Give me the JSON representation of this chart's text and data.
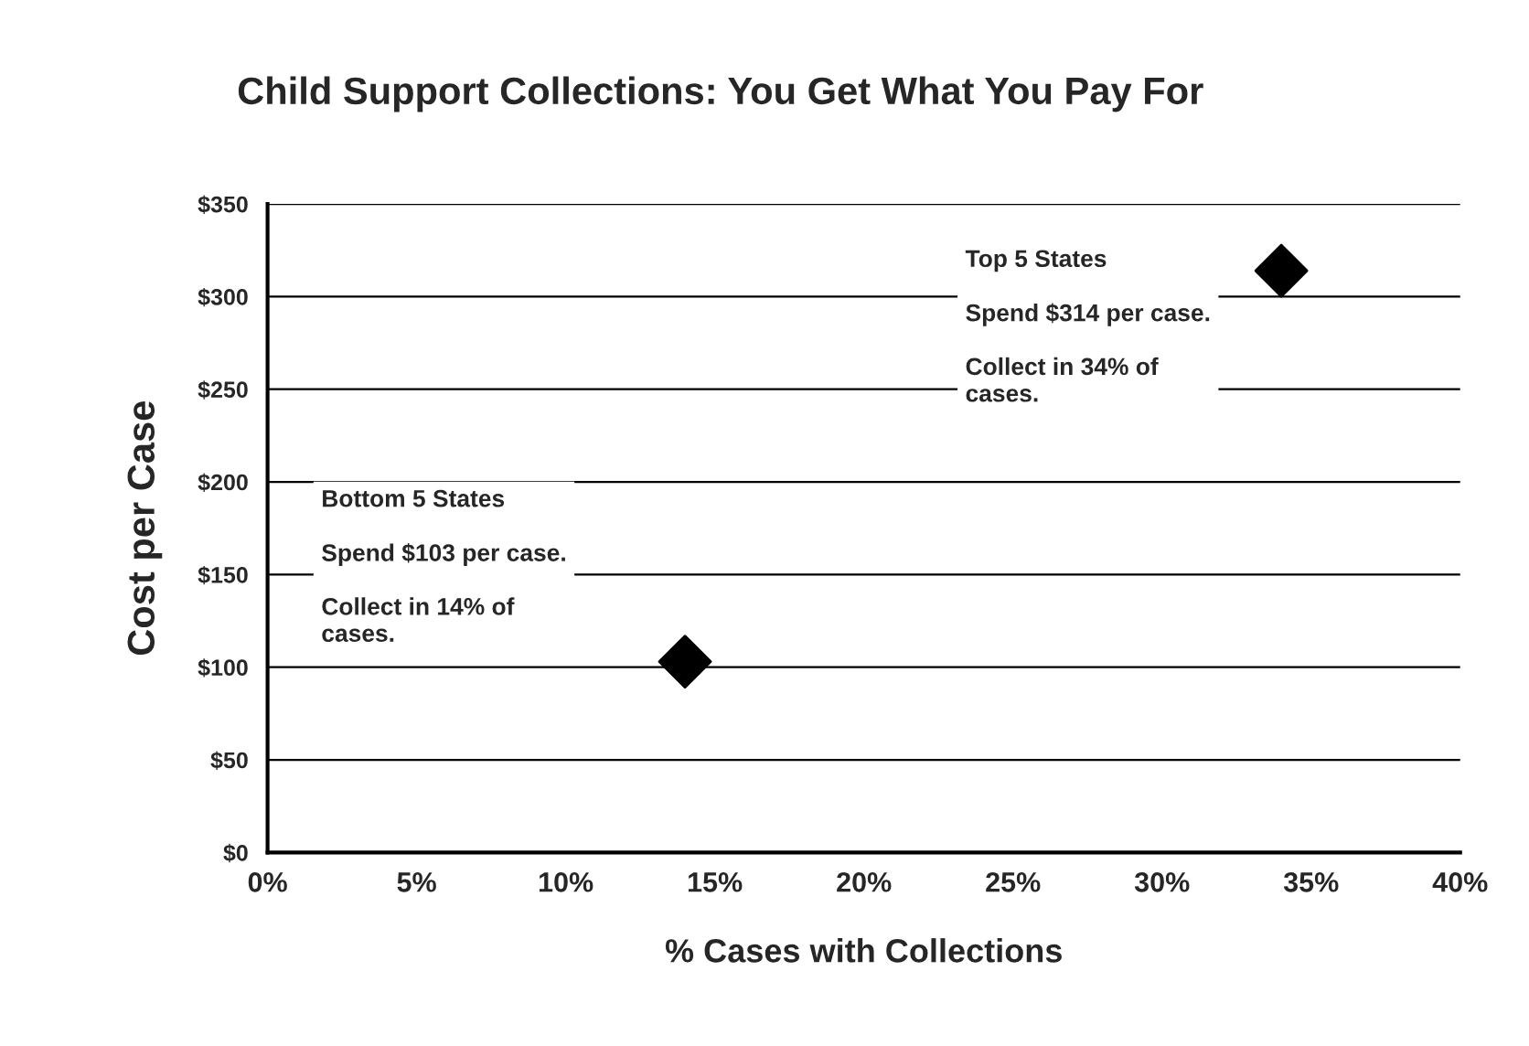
{
  "chart_data": {
    "type": "scatter",
    "title": "Child Support Collections: You Get What You Pay For",
    "xlabel": "% Cases with Collections",
    "ylabel": "Cost per Case",
    "x": [
      14,
      34
    ],
    "values": [
      103,
      314
    ],
    "color": "#000000",
    "marker": "diamond",
    "xlim": [
      0,
      40
    ],
    "xticks": [
      {
        "value": 0,
        "label": "0%"
      },
      {
        "value": 5,
        "label": "5%"
      },
      {
        "value": 10,
        "label": "10%"
      },
      {
        "value": 15,
        "label": "15%"
      },
      {
        "value": 20,
        "label": "20%"
      },
      {
        "value": 25,
        "label": "25%"
      },
      {
        "value": 30,
        "label": "30%"
      },
      {
        "value": 35,
        "label": "35%"
      },
      {
        "value": 40,
        "label": "40%"
      }
    ],
    "ylim": [
      0,
      350
    ],
    "yticks": [
      {
        "value": 0,
        "label": "$0"
      },
      {
        "value": 50,
        "label": "$50"
      },
      {
        "value": 100,
        "label": "$100"
      },
      {
        "value": 150,
        "label": "$150"
      },
      {
        "value": 200,
        "label": "$200"
      },
      {
        "value": 250,
        "label": "$250"
      },
      {
        "value": 300,
        "label": "$300"
      },
      {
        "value": 350,
        "label": "$350"
      }
    ],
    "grid": "y",
    "annotations": [
      "Bottom 5 States\n\nSpend $103 per case.\n\nCollect in 14% of\ncases.",
      "Top 5 States\n\nSpend $314 per case.\n\nCollect in 34% of\ncases."
    ]
  }
}
